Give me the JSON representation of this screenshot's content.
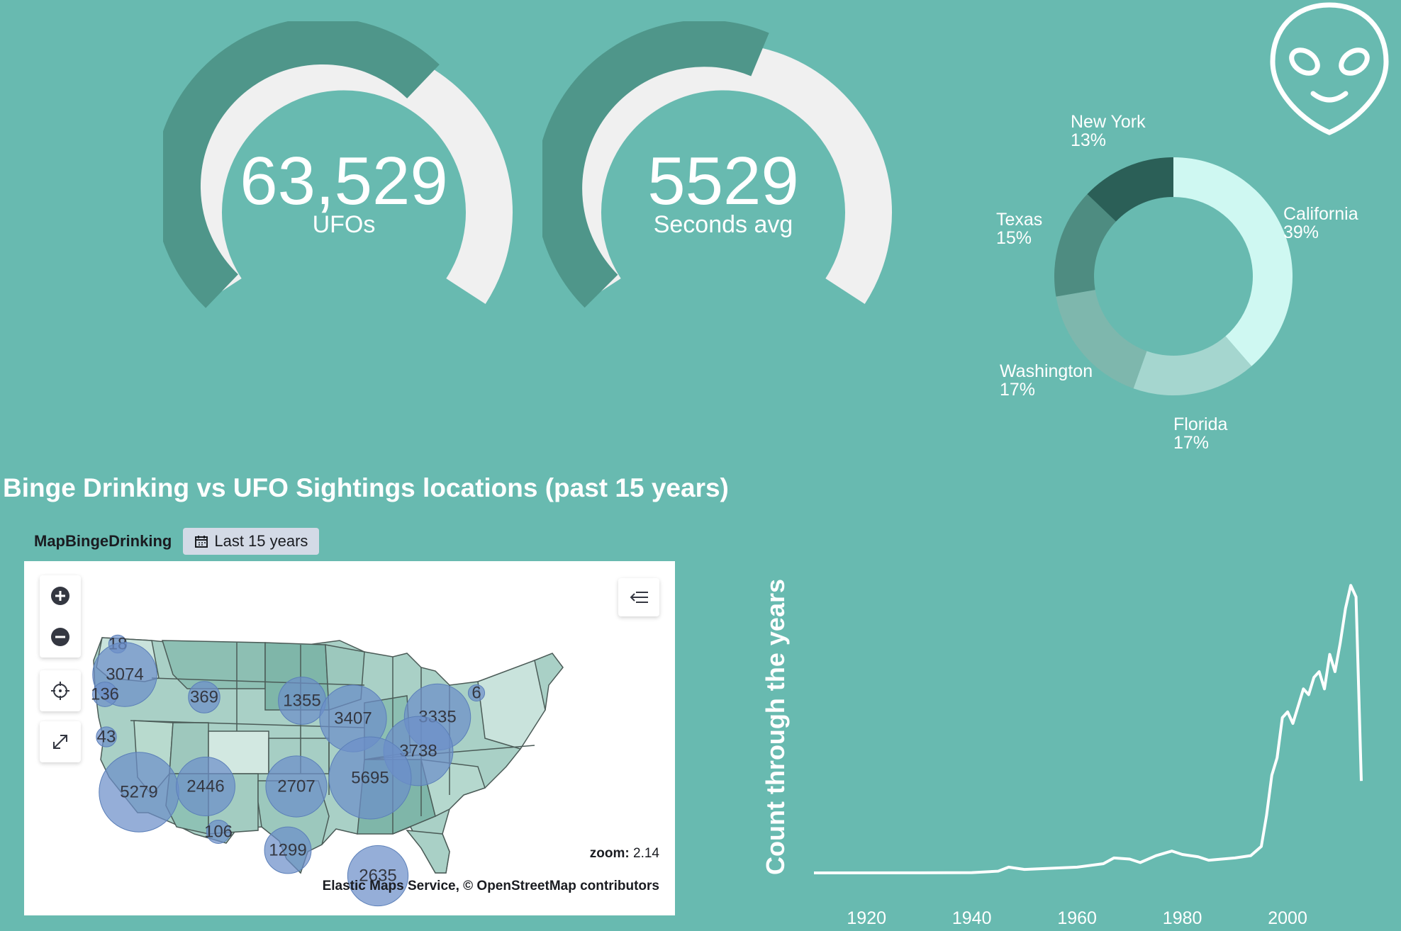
{
  "gauges": [
    {
      "value": "63,529",
      "label": "UFOs",
      "fill_fraction": 0.55
    },
    {
      "value": "5529",
      "label": "Seconds avg",
      "fill_fraction": 0.6
    }
  ],
  "colors": {
    "background": "#68bab0",
    "gauge_fill": "#4f968a",
    "gauge_track": "#f0f0f0",
    "line": "#ffffff",
    "cluster": "#6c8fc9"
  },
  "icons": {
    "alien": "alien-head-icon"
  },
  "chart_data": [
    {
      "type": "pie",
      "title": "",
      "categories": [
        "California",
        "Florida",
        "Washington",
        "Texas",
        "New York"
      ],
      "values": [
        39,
        17,
        17,
        15,
        13
      ],
      "percent_labels": [
        "39%",
        "17%",
        "17%",
        "15%",
        "13%"
      ],
      "colors": [
        "#cff8f2",
        "#a5d6cf",
        "#7eb7ad",
        "#4e8c81",
        "#2b5f57"
      ],
      "donut": true
    },
    {
      "type": "line",
      "title": "",
      "xlabel": "",
      "ylabel": "Count through the years",
      "x_ticks": [
        "1920",
        "1940",
        "1960",
        "1980",
        "2000"
      ],
      "xlim": [
        1910,
        2014
      ],
      "ylim": [
        0,
        5200
      ],
      "series": [
        {
          "x": [
            1910,
            1930,
            1940,
            1945,
            1947,
            1950,
            1955,
            1960,
            1965,
            1967,
            1970,
            1972,
            1975,
            1978,
            1980,
            1983,
            1985,
            1990,
            1993,
            1995,
            1996,
            1997,
            1998,
            1999,
            2000,
            2001,
            2002,
            2003,
            2004,
            2005,
            2006,
            2007,
            2008,
            2009,
            2010,
            2011,
            2012,
            2013,
            2014
          ],
          "y": [
            0,
            2,
            5,
            30,
            100,
            60,
            80,
            100,
            160,
            260,
            240,
            180,
            300,
            380,
            320,
            280,
            220,
            260,
            300,
            460,
            1000,
            1700,
            2000,
            2700,
            2800,
            2600,
            2900,
            3200,
            3100,
            3400,
            3500,
            3200,
            3800,
            3500,
            4000,
            4600,
            5000,
            4800,
            1600
          ]
        }
      ]
    }
  ],
  "map": {
    "section_title": "Binge Drinking vs UFO Sightings locations (past 15 years)",
    "name": "MapBingeDrinking",
    "time_range": "Last 15 years",
    "zoom_label": "zoom:",
    "zoom_value": "2.14",
    "attribution": "Elastic Maps Service, © OpenStreetMap contributors",
    "clusters": [
      "18",
      "3074",
      "136",
      "369",
      "1355",
      "3407",
      "3335",
      "6",
      "43",
      "3738",
      "5279",
      "2446",
      "2707",
      "5695",
      "106",
      "1299",
      "2635"
    ]
  }
}
